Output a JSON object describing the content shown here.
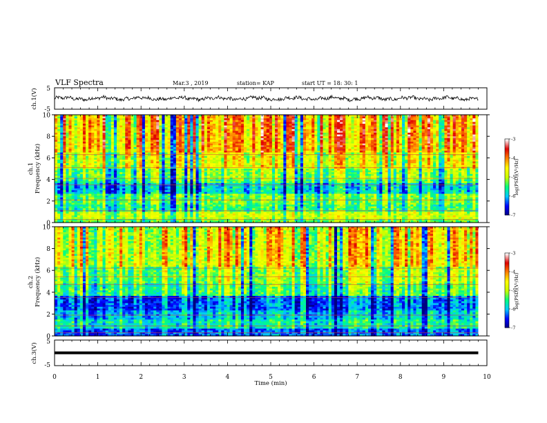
{
  "header": {
    "title": "VLF  Spectra",
    "date": "Mar.3  , 2019",
    "station": "station= KAP",
    "start": "start  UT  =   18: 30: 1"
  },
  "colors": {
    "scale": [
      "#000080",
      "#0000ff",
      "#00c8ff",
      "#00ff80",
      "#c8ff00",
      "#ffff00",
      "#ff8000",
      "#e00000",
      "#ffffff"
    ],
    "waveform": "#000000"
  },
  "chart_data": [
    {
      "type": "line",
      "panel": "ch1-waveform",
      "ylabel": "ch.1(V)",
      "xlim": [
        0,
        10
      ],
      "ylim": [
        -5,
        5
      ],
      "yticks": [
        "5",
        "-5"
      ],
      "baseline": 0,
      "amplitude": 1.2,
      "x_end": 9.8
    },
    {
      "type": "heatmap",
      "panel": "ch1-spectrogram",
      "ylabel_line1": "ch.1",
      "ylabel_line2": "Frequency  (kHz)",
      "xlim": [
        0,
        10
      ],
      "ylim": [
        0,
        10
      ],
      "yticks": [
        "0",
        "2",
        "4",
        "6",
        "8",
        "10"
      ],
      "data_x_end": 9.8,
      "colorbar": {
        "label": "log(PSD)(V²/Hz)",
        "range": [
          -7,
          -3
        ],
        "ticks": [
          "-3",
          "-4",
          "-5",
          "-6",
          "-7"
        ]
      },
      "bands": [
        {
          "from": 0,
          "to": 0.4,
          "level": 0.45
        },
        {
          "from": 0.4,
          "to": 1.0,
          "level": 0.55
        },
        {
          "from": 1.0,
          "to": 1.7,
          "level": 0.4
        },
        {
          "from": 1.7,
          "to": 2.7,
          "level": 0.45
        },
        {
          "from": 2.7,
          "to": 3.6,
          "level": 0.3
        },
        {
          "from": 3.6,
          "to": 4.0,
          "level": 0.42
        },
        {
          "from": 4.0,
          "to": 5.0,
          "level": 0.48
        },
        {
          "from": 5.0,
          "to": 6.5,
          "level": 0.6
        },
        {
          "from": 6.5,
          "to": 10.0,
          "level": 0.72
        }
      ]
    },
    {
      "type": "heatmap",
      "panel": "ch2-spectrogram",
      "ylabel_line1": "ch.2",
      "ylabel_line2": "Frequency  (kHz)",
      "xlim": [
        0,
        10
      ],
      "ylim": [
        0,
        10
      ],
      "yticks": [
        "0",
        "2",
        "4",
        "6",
        "8",
        "10"
      ],
      "data_x_end": 9.8,
      "colorbar": {
        "label": "log(PSD)(V²/Hz)",
        "range": [
          -7,
          -3
        ],
        "ticks": [
          "-3",
          "-4",
          "-5",
          "-6",
          "-7"
        ]
      },
      "bands": [
        {
          "from": 0,
          "to": 0.6,
          "level": 0.2
        },
        {
          "from": 0.6,
          "to": 1.5,
          "level": 0.35
        },
        {
          "from": 1.5,
          "to": 2.4,
          "level": 0.28
        },
        {
          "from": 2.4,
          "to": 3.6,
          "level": 0.2
        },
        {
          "from": 3.6,
          "to": 4.8,
          "level": 0.42
        },
        {
          "from": 4.8,
          "to": 6.3,
          "level": 0.5
        },
        {
          "from": 6.3,
          "to": 10.0,
          "level": 0.62
        }
      ]
    },
    {
      "type": "line",
      "panel": "ch3-waveform",
      "ylabel": "ch.3(V)",
      "xlim": [
        0,
        10
      ],
      "ylim": [
        -5,
        5
      ],
      "yticks": [
        "5",
        "-5"
      ],
      "baseline": 0,
      "amplitude": 0,
      "x_end": 9.8
    }
  ],
  "xaxis": {
    "label": "Time  (min)",
    "ticks": [
      "0",
      "1",
      "2",
      "3",
      "4",
      "5",
      "6",
      "7",
      "8",
      "9",
      "10"
    ]
  }
}
